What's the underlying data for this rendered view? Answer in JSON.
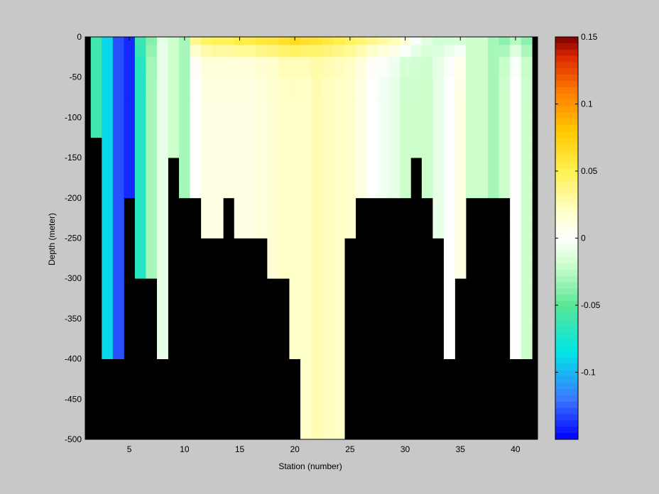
{
  "chart_data": {
    "type": "heatmap",
    "title": "",
    "xlabel": "Station (number)",
    "ylabel": "Depth (meter)",
    "xlim": [
      1,
      42
    ],
    "ylim": [
      -500,
      0
    ],
    "xticks": [
      5,
      10,
      15,
      20,
      25,
      30,
      35,
      40
    ],
    "yticks": [
      0,
      -50,
      -100,
      -150,
      -200,
      -250,
      -300,
      -350,
      -400,
      -450,
      -500
    ],
    "colormap": "jet-like, white at 0",
    "nan_color": "#000000",
    "colorbar": {
      "limits": [
        -0.15,
        0.15
      ],
      "ticks": [
        0.15,
        0.1,
        0.05,
        0,
        -0.05,
        -0.1
      ],
      "tick_labels": [
        "0.15",
        "0.1",
        "0.05",
        "0",
        "-0.05",
        "-0.1"
      ]
    },
    "stations": [
      2,
      3,
      4,
      5,
      6,
      7,
      8,
      9,
      10,
      11,
      12,
      13,
      14,
      15,
      16,
      17,
      18,
      19,
      20,
      21,
      22,
      23,
      24,
      25,
      26,
      27,
      28,
      29,
      30,
      31,
      32,
      33,
      34,
      35,
      36,
      37,
      38,
      39,
      40,
      41
    ],
    "depth_levels": [
      0,
      -10,
      -25,
      -50,
      -75,
      -100,
      -125,
      -150,
      -175,
      -200,
      -225,
      -250,
      -275,
      -300,
      -350,
      -400,
      -450,
      -500
    ],
    "bottom_depth_by_station": [
      125,
      400,
      400,
      200,
      300,
      300,
      400,
      150,
      200,
      200,
      250,
      250,
      200,
      250,
      250,
      250,
      300,
      300,
      400,
      500,
      500,
      500,
      500,
      250,
      200,
      200,
      200,
      200,
      200,
      150,
      200,
      250,
      400,
      300,
      200,
      200,
      200,
      200,
      400,
      400
    ],
    "mean_value_by_station": [
      -0.06,
      -0.09,
      -0.13,
      -0.14,
      -0.07,
      -0.03,
      -0.01,
      -0.02,
      -0.03,
      0.0,
      0.01,
      0.01,
      0.01,
      0.01,
      0.01,
      0.012,
      0.015,
      0.02,
      0.02,
      0.02,
      0.025,
      0.022,
      0.02,
      0.018,
      0.01,
      0.0,
      -0.005,
      -0.01,
      -0.02,
      -0.02,
      -0.02,
      -0.01,
      0.0,
      0.01,
      -0.02,
      -0.02,
      -0.03,
      -0.02,
      0.0,
      -0.02
    ],
    "surface_value_by_station": [
      -0.06,
      -0.09,
      -0.13,
      -0.14,
      -0.06,
      -0.04,
      -0.01,
      -0.02,
      -0.03,
      0.04,
      0.05,
      0.055,
      0.055,
      0.06,
      0.06,
      0.065,
      0.065,
      0.07,
      0.075,
      0.07,
      0.065,
      0.06,
      0.055,
      0.05,
      0.045,
      0.04,
      0.035,
      0.03,
      0.02,
      0.0,
      -0.01,
      -0.02,
      -0.02,
      -0.02,
      -0.02,
      -0.02,
      -0.03,
      -0.04,
      -0.03,
      -0.04
    ]
  }
}
